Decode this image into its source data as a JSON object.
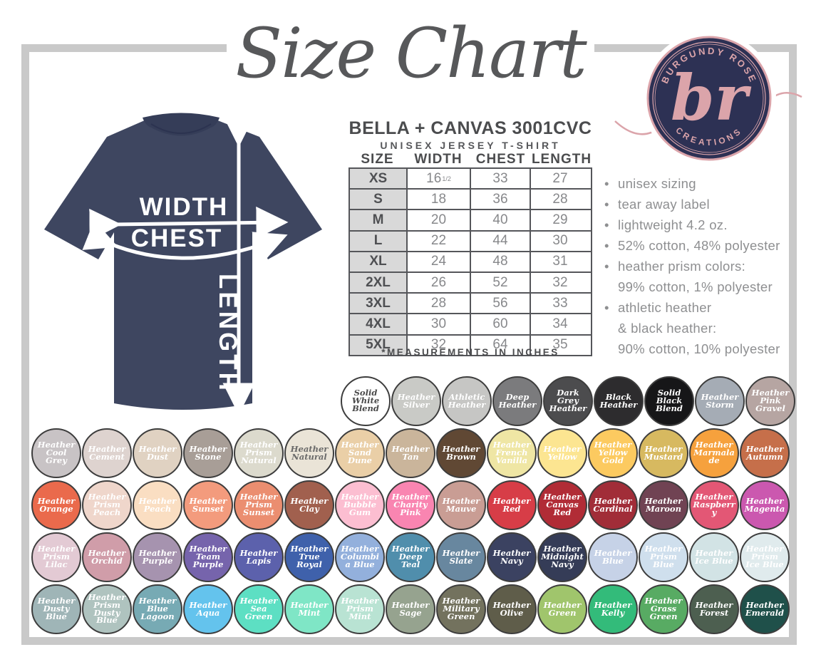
{
  "page_title": "Size Chart",
  "product": {
    "brand_line": "BELLA + CANVAS 3001CVC",
    "style_line": "UNISEX JERSEY T-SHIRT",
    "footnote": "*MEASUREMENTS IN INCHES"
  },
  "diagram": {
    "width_label": "WIDTH",
    "chest_label": "CHEST",
    "length_label": "LENGTH",
    "shirt_color": "#3e4660"
  },
  "logo": {
    "top_text": "BURGUNDY ROSE",
    "bottom_text": "CREATIONS",
    "monogram": "br",
    "bg_color": "#2d3154",
    "accent_color": "#dba4aa"
  },
  "size_table": {
    "columns": [
      "SIZE",
      "WIDTH",
      "CHEST",
      "LENGTH"
    ],
    "rows": [
      {
        "size": "XS",
        "width": "16",
        "width_sup": "1/2",
        "chest": "33",
        "length": "27"
      },
      {
        "size": "S",
        "width": "18",
        "chest": "36",
        "length": "28"
      },
      {
        "size": "M",
        "width": "20",
        "chest": "40",
        "length": "29"
      },
      {
        "size": "L",
        "width": "22",
        "chest": "44",
        "length": "30"
      },
      {
        "size": "XL",
        "width": "24",
        "chest": "48",
        "length": "31"
      },
      {
        "size": "2XL",
        "width": "26",
        "chest": "52",
        "length": "32"
      },
      {
        "size": "3XL",
        "width": "28",
        "chest": "56",
        "length": "33"
      },
      {
        "size": "4XL",
        "width": "30",
        "chest": "60",
        "length": "34"
      },
      {
        "size": "5XL",
        "width": "32",
        "chest": "64",
        "length": "35"
      }
    ]
  },
  "features": [
    {
      "lines": [
        "unisex sizing"
      ]
    },
    {
      "lines": [
        "tear away label"
      ]
    },
    {
      "lines": [
        "lightweight 4.2 oz."
      ]
    },
    {
      "lines": [
        "52% cotton, 48% polyester"
      ]
    },
    {
      "lines": [
        "heather prism colors:",
        "99% cotton, 1% polyester"
      ]
    },
    {
      "lines": [
        "athletic heather",
        "& black heather:",
        "90% cotton, 10% polyester"
      ]
    }
  ],
  "swatch_rows": [
    [
      {
        "name": "Solid White Blend",
        "bg": "#ffffff",
        "fg": "#4a4a4a"
      },
      {
        "name": "Heather Silver",
        "bg": "#c9cac6"
      },
      {
        "name": "Athletic Heather",
        "bg": "#c6c6c4"
      },
      {
        "name": "Deep Heather",
        "bg": "#7b7b7d"
      },
      {
        "name": "Dark Grey Heather",
        "bg": "#4c4c4e"
      },
      {
        "name": "Black Heather",
        "bg": "#2d2c2e"
      },
      {
        "name": "Solid Black Blend",
        "bg": "#161618"
      },
      {
        "name": "Heather Storm",
        "bg": "#a5acb5"
      },
      {
        "name": "Heather Pink Gravel",
        "bg": "#b6a5a2"
      }
    ],
    [
      {
        "name": "Heather Cool Grey",
        "bg": "#c8c3c5"
      },
      {
        "name": "Heather Cement",
        "bg": "#ded3cf"
      },
      {
        "name": "Heather Dust",
        "bg": "#e0d2c2"
      },
      {
        "name": "Heather Stone",
        "bg": "#a89e97"
      },
      {
        "name": "Heather Prism Natural",
        "bg": "#dcdacd"
      },
      {
        "name": "Heather Natural",
        "bg": "#eae4d7",
        "fg": "#6a6a6a"
      },
      {
        "name": "Heather Sand Dune",
        "bg": "#eacfa7"
      },
      {
        "name": "Heather Tan",
        "bg": "#cab59b"
      },
      {
        "name": "Heather Brown",
        "bg": "#604834"
      },
      {
        "name": "Heather French Vanilla",
        "bg": "#efe6a4"
      },
      {
        "name": "Heather Yellow",
        "bg": "#fce591"
      },
      {
        "name": "Heather Yellow Gold",
        "bg": "#fcca60"
      },
      {
        "name": "Heather Mustard",
        "bg": "#d7b960"
      },
      {
        "name": "Heather Marmalade",
        "bg": "#f6a13d"
      },
      {
        "name": "Heather Autumn",
        "bg": "#c66f4a"
      }
    ],
    [
      {
        "name": "Heather Orange",
        "bg": "#ea6a4c"
      },
      {
        "name": "Heather Prism Peach",
        "bg": "#efd6cb"
      },
      {
        "name": "Heather Peach",
        "bg": "#fadec2"
      },
      {
        "name": "Heather Sunset",
        "bg": "#f39b7d"
      },
      {
        "name": "Heather Prism Sunset",
        "bg": "#eb8e70"
      },
      {
        "name": "Heather Clay",
        "bg": "#a1604e"
      },
      {
        "name": "Heather Bubble Gum",
        "bg": "#fcbed1"
      },
      {
        "name": "Heather Charity Pink",
        "bg": "#f985b1"
      },
      {
        "name": "Heather Mauve",
        "bg": "#c99d94"
      },
      {
        "name": "Heather Red",
        "bg": "#d73d47"
      },
      {
        "name": "Heather Canvas Red",
        "bg": "#b12c36"
      },
      {
        "name": "Heather Cardinal",
        "bg": "#a12d38"
      },
      {
        "name": "Heather Maroon",
        "bg": "#704353"
      },
      {
        "name": "Heather Raspberry",
        "bg": "#e35775"
      },
      {
        "name": "Heather Magenta",
        "bg": "#cb58af"
      }
    ],
    [
      {
        "name": "Heather Prism Lilac",
        "bg": "#e3cad4"
      },
      {
        "name": "Heather Orchid",
        "bg": "#d09da9"
      },
      {
        "name": "Heather Purple",
        "bg": "#a693af"
      },
      {
        "name": "Heather Team Purple",
        "bg": "#7664ac"
      },
      {
        "name": "Heather Lapis",
        "bg": "#5c61ac"
      },
      {
        "name": "Heather True Royal",
        "bg": "#3f61ab"
      },
      {
        "name": "Heather Columbia Blue",
        "bg": "#93b0dc"
      },
      {
        "name": "Heather Deep Teal",
        "bg": "#508eac"
      },
      {
        "name": "Heather Slate",
        "bg": "#68879f"
      },
      {
        "name": "Heather Navy",
        "bg": "#3b4261"
      },
      {
        "name": "Heather Midnight Navy",
        "bg": "#353c57"
      },
      {
        "name": "Heather Blue",
        "bg": "#c6d2e7"
      },
      {
        "name": "Heather Prism Blue",
        "bg": "#cfdfed"
      },
      {
        "name": "Heather Ice Blue",
        "bg": "#d2e3e5"
      },
      {
        "name": "Heather Prism Ice Blue",
        "bg": "#e0ebed"
      }
    ],
    [
      {
        "name": "Heather Dusty Blue",
        "bg": "#9fb5b7"
      },
      {
        "name": "Heather Prism Dusty Blue",
        "bg": "#afc3bf"
      },
      {
        "name": "Heather Blue Lagoon",
        "bg": "#77aab4"
      },
      {
        "name": "Heather Aqua",
        "bg": "#64c3ed"
      },
      {
        "name": "Heather Sea Green",
        "bg": "#5ddfc3"
      },
      {
        "name": "Heather Mint",
        "bg": "#7fe6c6"
      },
      {
        "name": "Heather Prism Mint",
        "bg": "#b9e3d3"
      },
      {
        "name": "Heather Sage",
        "bg": "#96a38f"
      },
      {
        "name": "Heather Military Green",
        "bg": "#73725e"
      },
      {
        "name": "Heather Olive",
        "bg": "#5f5d4a"
      },
      {
        "name": "Heather Green",
        "bg": "#a0c56c"
      },
      {
        "name": "Heather Kelly",
        "bg": "#33bb7a"
      },
      {
        "name": "Heather Grass Green",
        "bg": "#58ab63"
      },
      {
        "name": "Heather Forest",
        "bg": "#4d5f50"
      },
      {
        "name": "Heather Emerald",
        "bg": "#1f504a"
      }
    ]
  ]
}
